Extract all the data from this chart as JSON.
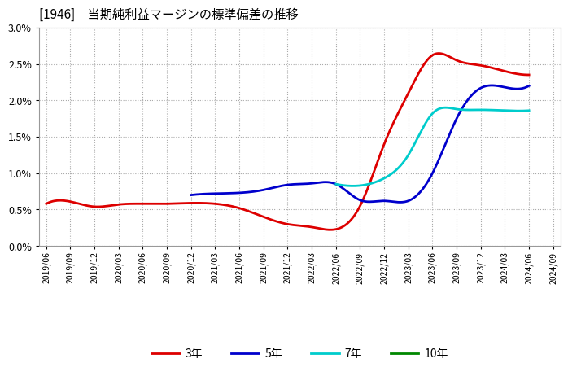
{
  "title": "[1946]　当期純利益マージンの標準偏差の推移",
  "ylim": [
    0.0,
    0.03
  ],
  "yticks": [
    0.0,
    0.005,
    0.01,
    0.015,
    0.02,
    0.025,
    0.03
  ],
  "background_color": "#ffffff",
  "grid_color": "#aaaaaa",
  "series": {
    "3year": {
      "color": "#dd0000",
      "label": "3年",
      "dates": [
        "2019/06",
        "2019/09",
        "2019/12",
        "2020/03",
        "2020/06",
        "2020/09",
        "2020/12",
        "2021/03",
        "2021/06",
        "2021/09",
        "2021/12",
        "2022/03",
        "2022/06",
        "2022/09",
        "2022/12",
        "2023/03",
        "2023/06",
        "2023/09",
        "2023/12",
        "2024/03",
        "2024/06"
      ],
      "values": [
        0.0058,
        0.0061,
        0.0054,
        0.0057,
        0.0058,
        0.0058,
        0.0059,
        0.0058,
        0.0052,
        0.004,
        0.003,
        0.0026,
        0.0023,
        0.0055,
        0.014,
        0.021,
        0.0262,
        0.0255,
        0.0248,
        0.024,
        0.0235
      ]
    },
    "5year": {
      "color": "#0000cc",
      "label": "5年",
      "dates": [
        "2020/12",
        "2021/03",
        "2021/06",
        "2021/09",
        "2021/12",
        "2022/03",
        "2022/06",
        "2022/09",
        "2022/12",
        "2023/03",
        "2023/06",
        "2023/09",
        "2023/12",
        "2024/03",
        "2024/06"
      ],
      "values": [
        0.007,
        0.0072,
        0.0073,
        0.0077,
        0.0084,
        0.0086,
        0.0085,
        0.0063,
        0.0062,
        0.0062,
        0.01,
        0.0175,
        0.0217,
        0.0218,
        0.022
      ]
    },
    "7year": {
      "color": "#00cccc",
      "label": "7年",
      "dates": [
        "2022/06",
        "2022/09",
        "2022/12",
        "2023/03",
        "2023/06",
        "2023/09",
        "2023/12",
        "2024/03",
        "2024/06"
      ],
      "values": [
        0.0085,
        0.0083,
        0.0093,
        0.0125,
        0.0182,
        0.0188,
        0.0187,
        0.0186,
        0.0186
      ]
    },
    "10year": {
      "color": "#008800",
      "label": "10年",
      "dates": [],
      "values": []
    }
  },
  "xtick_labels": [
    "2019/06",
    "2019/09",
    "2019/12",
    "2020/03",
    "2020/06",
    "2020/09",
    "2020/12",
    "2021/03",
    "2021/06",
    "2021/09",
    "2021/12",
    "2022/03",
    "2022/06",
    "2022/09",
    "2022/12",
    "2023/03",
    "2023/06",
    "2023/09",
    "2023/12",
    "2024/03",
    "2024/06",
    "2024/09"
  ]
}
